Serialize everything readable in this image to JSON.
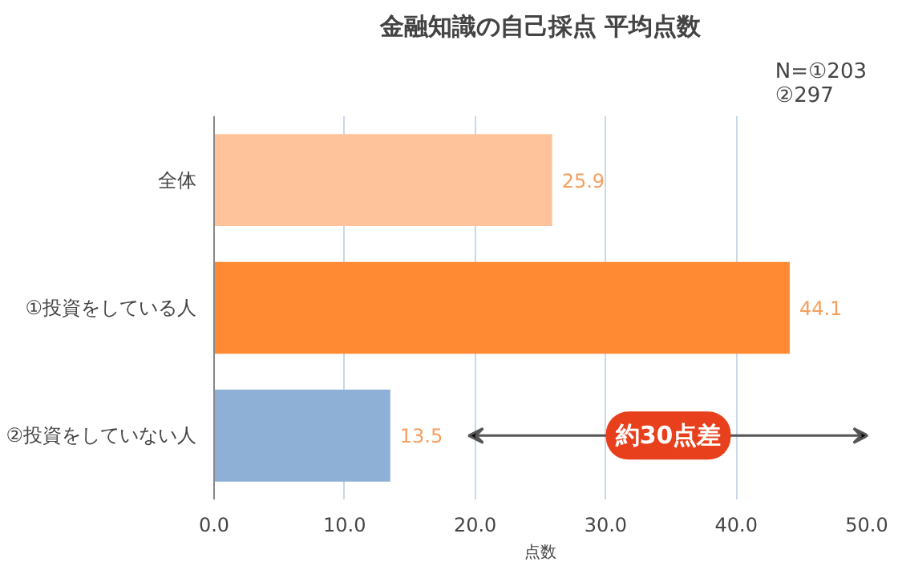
{
  "chart_data": {
    "type": "bar",
    "orientation": "horizontal",
    "title": "金融知識の自己採点 平均点数",
    "xlabel": "点数",
    "categories": [
      "全体",
      "①投資をしている人",
      "②投資をしていない人"
    ],
    "values": [
      25.9,
      44.1,
      13.5
    ],
    "colors": [
      "#ffc39b",
      "#ff8a33",
      "#8fb0d6"
    ],
    "xlim": [
      0,
      50
    ],
    "xticks": [
      {
        "value": 0,
        "label": "0.0"
      },
      {
        "value": 10,
        "label": "10.0"
      },
      {
        "value": 20,
        "label": "20.0"
      },
      {
        "value": 30,
        "label": "30.0"
      },
      {
        "value": 40,
        "label": "40.0"
      },
      {
        "value": 50,
        "label": "50.0"
      }
    ],
    "grid": "x",
    "data_labels": true,
    "annotations": [
      "N=①203\n②297",
      "約30点差"
    ]
  }
}
